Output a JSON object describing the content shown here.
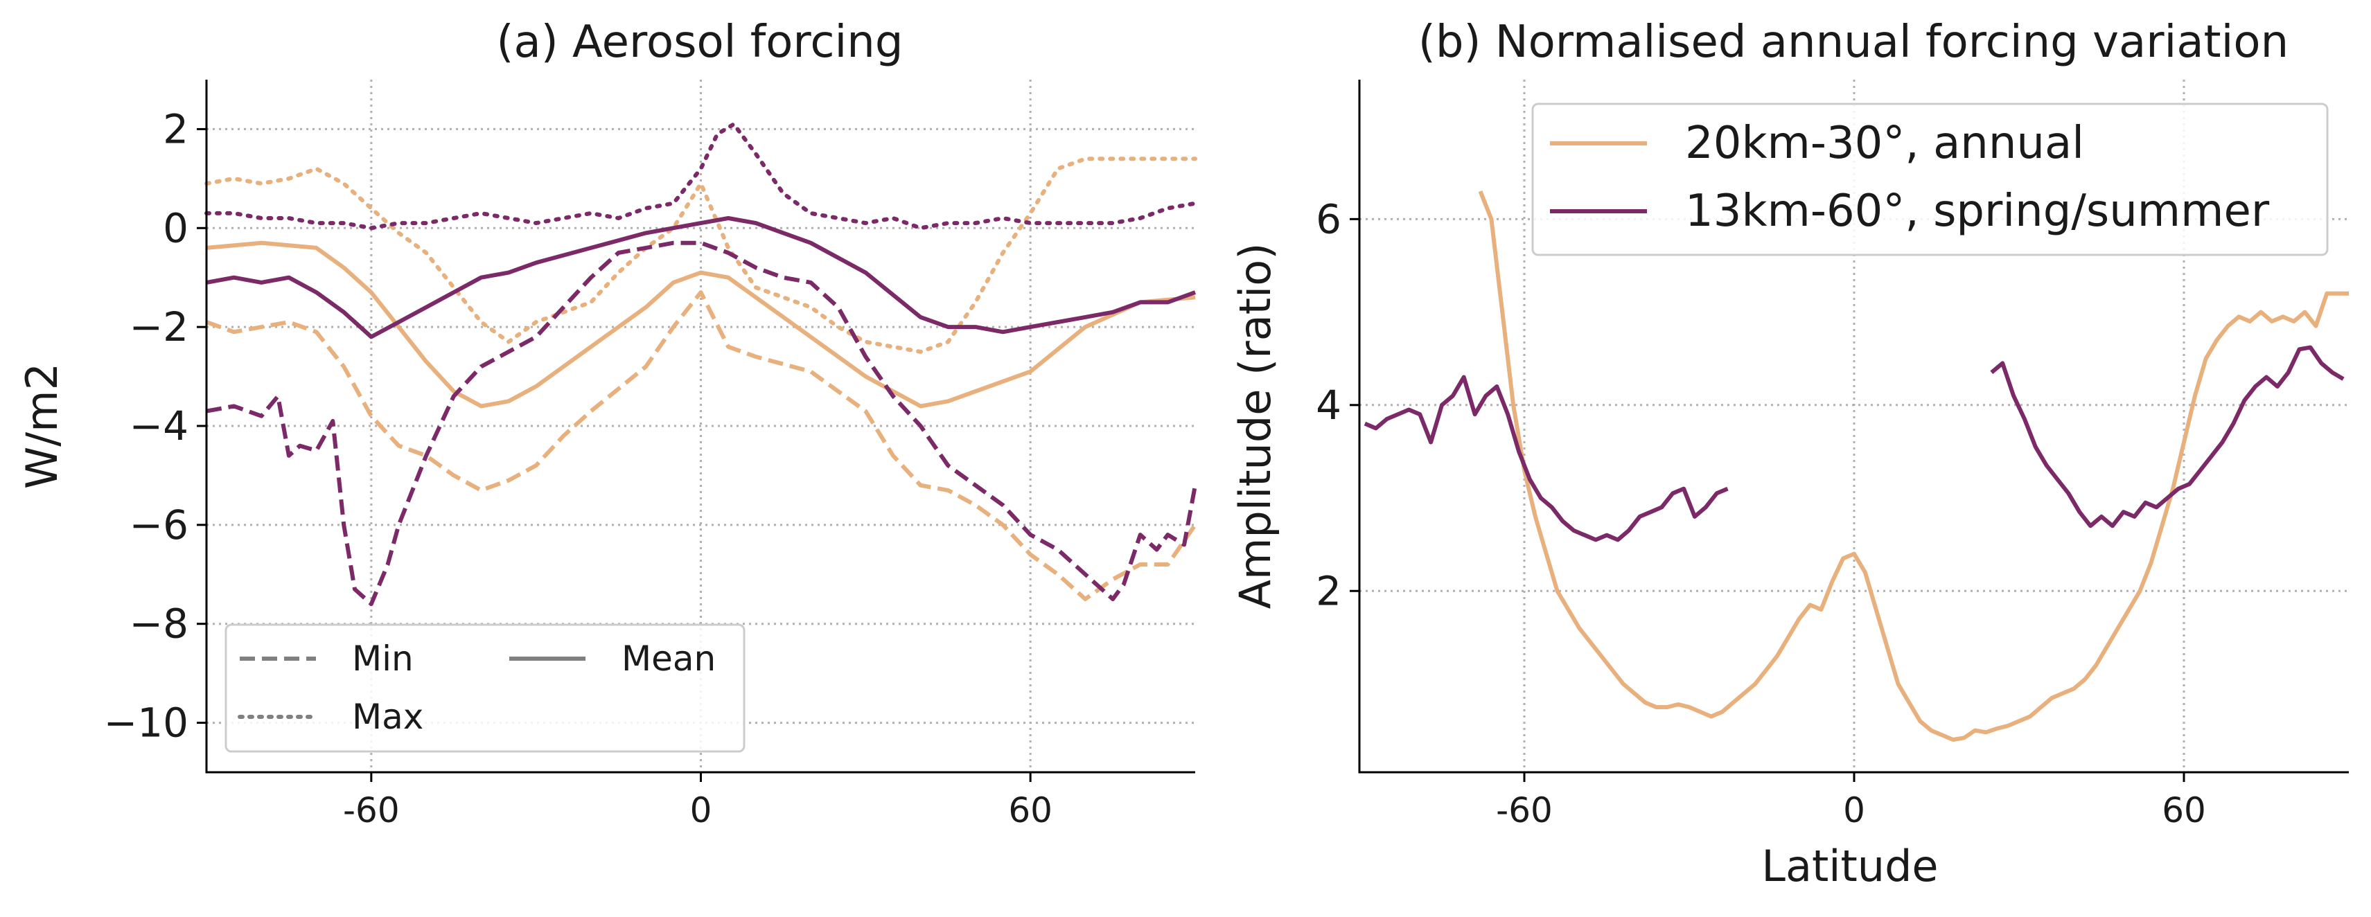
{
  "chart_data": [
    {
      "type": "line",
      "title": "(a) Aerosol forcing",
      "xlabel": "",
      "ylabel": "W/m2",
      "xlim": [
        -90,
        90
      ],
      "ylim": [
        -11,
        3
      ],
      "xticks": [
        "-60",
        "0",
        "60"
      ],
      "yticks": [
        "2",
        "0",
        "−2",
        "−4",
        "−6",
        "−8",
        "−10"
      ],
      "grid": true,
      "legend": {
        "placement": "lower-left",
        "entries": [
          {
            "label": "Min",
            "style": "dashed"
          },
          {
            "label": "Max",
            "style": "dotted"
          },
          {
            "label": "Mean",
            "style": "solid"
          }
        ]
      },
      "colors": {
        "orange": "#e8b07c",
        "purple": "#7c2a67",
        "legend_gray": "#808080"
      },
      "series": [
        {
          "color": "orange",
          "style": "mean",
          "x": [
            -90,
            -80,
            -70,
            -65,
            -60,
            -55,
            -50,
            -45,
            -40,
            -35,
            -30,
            -20,
            -10,
            -5,
            0,
            5,
            10,
            20,
            30,
            40,
            45,
            50,
            60,
            70,
            80,
            90
          ],
          "y": [
            -0.4,
            -0.3,
            -0.4,
            -0.8,
            -1.3,
            -2.0,
            -2.7,
            -3.3,
            -3.6,
            -3.5,
            -3.2,
            -2.4,
            -1.6,
            -1.1,
            -0.9,
            -1.0,
            -1.4,
            -2.2,
            -3.0,
            -3.6,
            -3.5,
            -3.3,
            -2.9,
            -2.0,
            -1.5,
            -1.4
          ]
        },
        {
          "color": "orange",
          "style": "min",
          "x": [
            -90,
            -85,
            -80,
            -75,
            -70,
            -65,
            -60,
            -55,
            -50,
            -45,
            -40,
            -35,
            -30,
            -25,
            -20,
            -10,
            -5,
            0,
            5,
            10,
            20,
            30,
            35,
            40,
            45,
            50,
            55,
            60,
            65,
            70,
            75,
            80,
            85,
            90
          ],
          "y": [
            -1.9,
            -2.1,
            -2.0,
            -1.9,
            -2.1,
            -2.8,
            -3.8,
            -4.4,
            -4.6,
            -5.0,
            -5.3,
            -5.1,
            -4.8,
            -4.2,
            -3.7,
            -2.8,
            -2.0,
            -1.3,
            -2.4,
            -2.6,
            -2.9,
            -3.7,
            -4.6,
            -5.2,
            -5.3,
            -5.6,
            -6.0,
            -6.6,
            -7.0,
            -7.5,
            -7.1,
            -6.8,
            -6.8,
            -6.0
          ]
        },
        {
          "color": "orange",
          "style": "max",
          "x": [
            -90,
            -85,
            -80,
            -75,
            -70,
            -65,
            -60,
            -55,
            -50,
            -45,
            -40,
            -35,
            -30,
            -25,
            -20,
            -15,
            -10,
            -5,
            0,
            5,
            10,
            15,
            20,
            25,
            30,
            35,
            40,
            45,
            50,
            55,
            60,
            65,
            70,
            75,
            80,
            85,
            90
          ],
          "y": [
            0.9,
            1.0,
            0.9,
            1.0,
            1.2,
            0.9,
            0.4,
            -0.1,
            -0.5,
            -1.2,
            -1.9,
            -2.3,
            -1.9,
            -1.7,
            -1.5,
            -0.9,
            -0.4,
            0.0,
            0.9,
            -0.4,
            -1.2,
            -1.4,
            -1.6,
            -2.0,
            -2.3,
            -2.4,
            -2.5,
            -2.3,
            -1.5,
            -0.5,
            0.3,
            1.2,
            1.4,
            1.4,
            1.4,
            1.4,
            1.4
          ]
        },
        {
          "color": "purple",
          "style": "mean",
          "x": [
            -90,
            -85,
            -80,
            -75,
            -70,
            -65,
            -60,
            -55,
            -50,
            -45,
            -40,
            -35,
            -30,
            -20,
            -10,
            0,
            5,
            10,
            20,
            30,
            40,
            45,
            50,
            55,
            60,
            65,
            70,
            75,
            80,
            85,
            90
          ],
          "y": [
            -1.1,
            -1.0,
            -1.1,
            -1.0,
            -1.3,
            -1.7,
            -2.2,
            -1.9,
            -1.6,
            -1.3,
            -1.0,
            -0.9,
            -0.7,
            -0.4,
            -0.1,
            0.1,
            0.2,
            0.1,
            -0.3,
            -0.9,
            -1.8,
            -2.0,
            -2.0,
            -2.1,
            -2.0,
            -1.9,
            -1.8,
            -1.7,
            -1.5,
            -1.5,
            -1.3
          ]
        },
        {
          "color": "purple",
          "style": "min",
          "x": [
            -90,
            -85,
            -80,
            -77,
            -75,
            -73,
            -70,
            -67,
            -65,
            -63,
            -60,
            -57,
            -55,
            -50,
            -45,
            -40,
            -35,
            -30,
            -25,
            -20,
            -15,
            -10,
            -5,
            0,
            5,
            10,
            15,
            20,
            25,
            30,
            35,
            40,
            45,
            50,
            55,
            60,
            65,
            70,
            75,
            77,
            80,
            83,
            85,
            88,
            90
          ],
          "y": [
            -3.7,
            -3.6,
            -3.8,
            -3.4,
            -4.6,
            -4.4,
            -4.5,
            -3.9,
            -6.0,
            -7.3,
            -7.6,
            -6.8,
            -6.0,
            -4.6,
            -3.4,
            -2.8,
            -2.5,
            -2.2,
            -1.6,
            -1.0,
            -0.5,
            -0.4,
            -0.3,
            -0.3,
            -0.5,
            -0.8,
            -1.0,
            -1.1,
            -1.6,
            -2.6,
            -3.4,
            -4.0,
            -4.8,
            -5.2,
            -5.6,
            -6.2,
            -6.5,
            -7.0,
            -7.5,
            -7.2,
            -6.2,
            -6.5,
            -6.2,
            -6.4,
            -5.2
          ]
        },
        {
          "color": "purple",
          "style": "max",
          "x": [
            -90,
            -85,
            -80,
            -75,
            -70,
            -65,
            -60,
            -55,
            -50,
            -45,
            -40,
            -35,
            -30,
            -25,
            -20,
            -15,
            -10,
            -5,
            0,
            3,
            6,
            10,
            15,
            20,
            25,
            30,
            35,
            40,
            45,
            50,
            55,
            60,
            65,
            70,
            75,
            80,
            85,
            90
          ],
          "y": [
            0.3,
            0.3,
            0.2,
            0.2,
            0.1,
            0.1,
            0.0,
            0.1,
            0.1,
            0.2,
            0.3,
            0.2,
            0.1,
            0.2,
            0.3,
            0.2,
            0.4,
            0.5,
            1.2,
            1.9,
            2.1,
            1.5,
            0.7,
            0.3,
            0.2,
            0.1,
            0.2,
            0.0,
            0.1,
            0.1,
            0.2,
            0.1,
            0.1,
            0.1,
            0.1,
            0.2,
            0.4,
            0.5
          ]
        }
      ]
    },
    {
      "type": "line",
      "title": "(b) Normalised annual forcing variation",
      "xlabel": "Latitude",
      "ylabel": "Amplitude (ratio)",
      "xlim": [
        -90,
        90
      ],
      "ylim": [
        0.05,
        7.5
      ],
      "xticks": [
        "-60",
        "0",
        "60"
      ],
      "yticks": [
        "6",
        "4",
        "2"
      ],
      "grid": true,
      "legend": {
        "placement": "top-right"
      },
      "colors": {
        "orange": "#e8b07c",
        "purple": "#7c2a67"
      },
      "series": [
        {
          "name": "20km-30°, annual",
          "color": "orange",
          "x": [
            -68,
            -66,
            -64,
            -62,
            -60,
            -58,
            -56,
            -54,
            -52,
            -50,
            -48,
            -46,
            -44,
            -42,
            -40,
            -38,
            -36,
            -34,
            -32,
            -30,
            -28,
            -26,
            -24,
            -22,
            -20,
            -18,
            -16,
            -14,
            -12,
            -10,
            -8,
            -6,
            -4,
            -2,
            0,
            2,
            4,
            6,
            8,
            10,
            12,
            14,
            16,
            18,
            20,
            22,
            24,
            26,
            28,
            30,
            32,
            34,
            36,
            38,
            40,
            42,
            44,
            46,
            48,
            50,
            52,
            54,
            56,
            58,
            60,
            62,
            64,
            66,
            68,
            70,
            72,
            74,
            76,
            78,
            80,
            82,
            84,
            86,
            88,
            90
          ],
          "y": [
            6.3,
            6.0,
            5.0,
            4.0,
            3.3,
            2.8,
            2.4,
            2.0,
            1.8,
            1.6,
            1.45,
            1.3,
            1.15,
            1.0,
            0.9,
            0.8,
            0.75,
            0.75,
            0.78,
            0.75,
            0.7,
            0.65,
            0.7,
            0.8,
            0.9,
            1.0,
            1.15,
            1.3,
            1.5,
            1.7,
            1.85,
            1.8,
            2.1,
            2.35,
            2.4,
            2.2,
            1.8,
            1.4,
            1.0,
            0.8,
            0.6,
            0.5,
            0.45,
            0.4,
            0.42,
            0.5,
            0.48,
            0.52,
            0.55,
            0.6,
            0.65,
            0.75,
            0.85,
            0.9,
            0.95,
            1.05,
            1.2,
            1.4,
            1.6,
            1.8,
            2.0,
            2.3,
            2.7,
            3.1,
            3.6,
            4.1,
            4.5,
            4.7,
            4.85,
            4.95,
            4.9,
            5.0,
            4.9,
            4.95,
            4.9,
            5.0,
            4.85,
            5.2,
            5.2,
            5.2
          ]
        },
        {
          "name": "13km-60°, spring/summer",
          "color": "purple",
          "segmented": true,
          "x": [
            -89,
            -87,
            -85,
            -83,
            -81,
            -79,
            -77,
            -75,
            -73,
            -71,
            -69,
            -67,
            -65,
            -63,
            -61,
            -59,
            -57,
            -55,
            -53,
            -51,
            -49,
            -47,
            -45,
            -43,
            -41,
            -39,
            -37,
            -35,
            -33,
            -31,
            -29,
            -27,
            -25,
            -23,
            null,
            25,
            27,
            29,
            31,
            33,
            35,
            37,
            39,
            41,
            43,
            45,
            47,
            49,
            51,
            53,
            55,
            57,
            59,
            61,
            63,
            65,
            67,
            69,
            71,
            73,
            75,
            77,
            79,
            81,
            83,
            85,
            87,
            89
          ],
          "y": [
            3.8,
            3.75,
            3.85,
            3.9,
            3.95,
            3.9,
            3.6,
            4.0,
            4.1,
            4.3,
            3.9,
            4.1,
            4.2,
            3.9,
            3.5,
            3.2,
            3.0,
            2.9,
            2.75,
            2.65,
            2.6,
            2.55,
            2.6,
            2.55,
            2.65,
            2.8,
            2.85,
            2.9,
            3.05,
            3.1,
            2.8,
            2.9,
            3.05,
            3.1,
            null,
            4.35,
            4.45,
            4.1,
            3.85,
            3.55,
            3.35,
            3.2,
            3.05,
            2.85,
            2.7,
            2.8,
            2.7,
            2.85,
            2.8,
            2.95,
            2.9,
            3.0,
            3.1,
            3.15,
            3.3,
            3.45,
            3.6,
            3.8,
            4.05,
            4.2,
            4.3,
            4.2,
            4.35,
            4.6,
            4.62,
            4.45,
            4.35,
            4.28
          ]
        }
      ]
    }
  ]
}
